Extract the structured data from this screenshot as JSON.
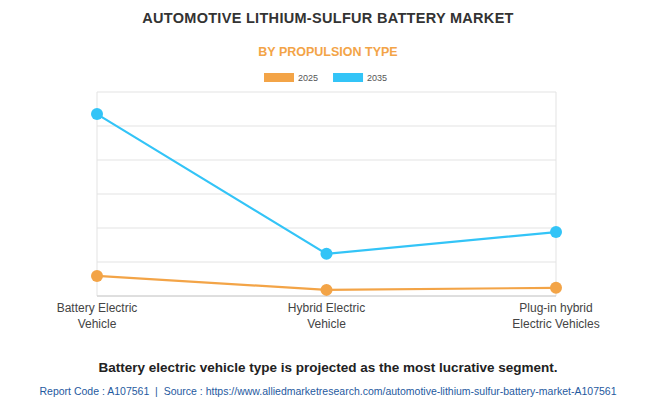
{
  "chart_data": {
    "type": "line",
    "title": "AUTOMOTIVE LITHIUM-SULFUR BATTERY MARKET",
    "subtitle": "BY PROPULSION TYPE",
    "categories": [
      "Battery Electric Vehicle",
      "Hybrid Electric Vehicle",
      "Plug-in hybrid Electric Vehicles"
    ],
    "series": [
      {
        "name": "2025",
        "color": "#f3a447",
        "marker": "circle",
        "values": [
          0.59,
          0.18,
          0.24
        ]
      },
      {
        "name": "2035",
        "color": "#33c4f7",
        "marker": "circle",
        "values": [
          5.35,
          1.24,
          1.88
        ]
      }
    ],
    "ylim": [
      0,
      6
    ],
    "yticks": [
      0,
      1,
      2,
      3,
      4,
      5,
      6
    ],
    "grid": true,
    "legend": "top",
    "tick_labels": "x",
    "annotation": "Battery electric vehicle type is projected as the most lucrative segment.",
    "source": "Report Code : A107561  |  Source : https://www.alliedmarketresearch.com/automotive-lithium-sulfur-battery-market-A107561"
  }
}
